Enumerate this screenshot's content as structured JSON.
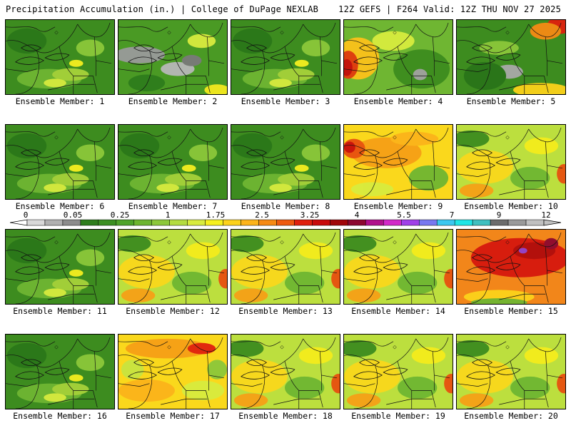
{
  "header": {
    "left": "Precipitation Accumulation (in.) | College of DuPage NEXLAB",
    "right": "12Z GEFS | F264 Valid: 12Z THU NOV 27 2025"
  },
  "colorbar": {
    "labels": [
      "0",
      "0.05",
      "0.25",
      "1",
      "1.75",
      "2.5",
      "3.25",
      "4",
      "5.5",
      "7",
      "9",
      "12"
    ],
    "colors": [
      "#d8d8d8",
      "#b0b0b0",
      "#8c8c8c",
      "#2e7d1c",
      "#3c8f22",
      "#4fa32a",
      "#6db52f",
      "#8cc83a",
      "#b4dc40",
      "#d8ec3e",
      "#f6f01c",
      "#fcd21a",
      "#fcb41a",
      "#f68a14",
      "#ee5a10",
      "#e0200e",
      "#c80a0c",
      "#a0060a",
      "#8c0830",
      "#b0108c",
      "#d228c8",
      "#a040e8",
      "#7878f0",
      "#3cc8f0",
      "#20e6e6",
      "#40c0c0",
      "#6c6c6c",
      "#9a9a9a",
      "#c0c0c0"
    ]
  },
  "panels": [
    {
      "label": "Ensemble Member: 1",
      "scheme": "green"
    },
    {
      "label": "Ensemble Member: 2",
      "scheme": "gray"
    },
    {
      "label": "Ensemble Member: 3",
      "scheme": "green"
    },
    {
      "label": "Ensemble Member: 4",
      "scheme": "redwest"
    },
    {
      "label": "Ensemble Member: 5",
      "scheme": "rednortheast"
    },
    {
      "label": "Ensemble Member: 6",
      "scheme": "green"
    },
    {
      "label": "Ensemble Member: 7",
      "scheme": "green"
    },
    {
      "label": "Ensemble Member: 8",
      "scheme": "green"
    },
    {
      "label": "Ensemble Member: 9",
      "scheme": "yellowred"
    },
    {
      "label": "Ensemble Member: 10",
      "scheme": "yellow"
    },
    {
      "label": "Ensemble Member: 11",
      "scheme": "green"
    },
    {
      "label": "Ensemble Member: 12",
      "scheme": "yellow"
    },
    {
      "label": "Ensemble Member: 13",
      "scheme": "yellow"
    },
    {
      "label": "Ensemble Member: 14",
      "scheme": "yellow"
    },
    {
      "label": "Ensemble Member: 15",
      "scheme": "red"
    },
    {
      "label": "Ensemble Member: 16",
      "scheme": "green"
    },
    {
      "label": "Ensemble Member: 17",
      "scheme": "orange"
    },
    {
      "label": "Ensemble Member: 18",
      "scheme": "yellow"
    },
    {
      "label": "Ensemble Member: 19",
      "scheme": "yellow"
    },
    {
      "label": "Ensemble Member: 20",
      "scheme": "yellow"
    }
  ]
}
